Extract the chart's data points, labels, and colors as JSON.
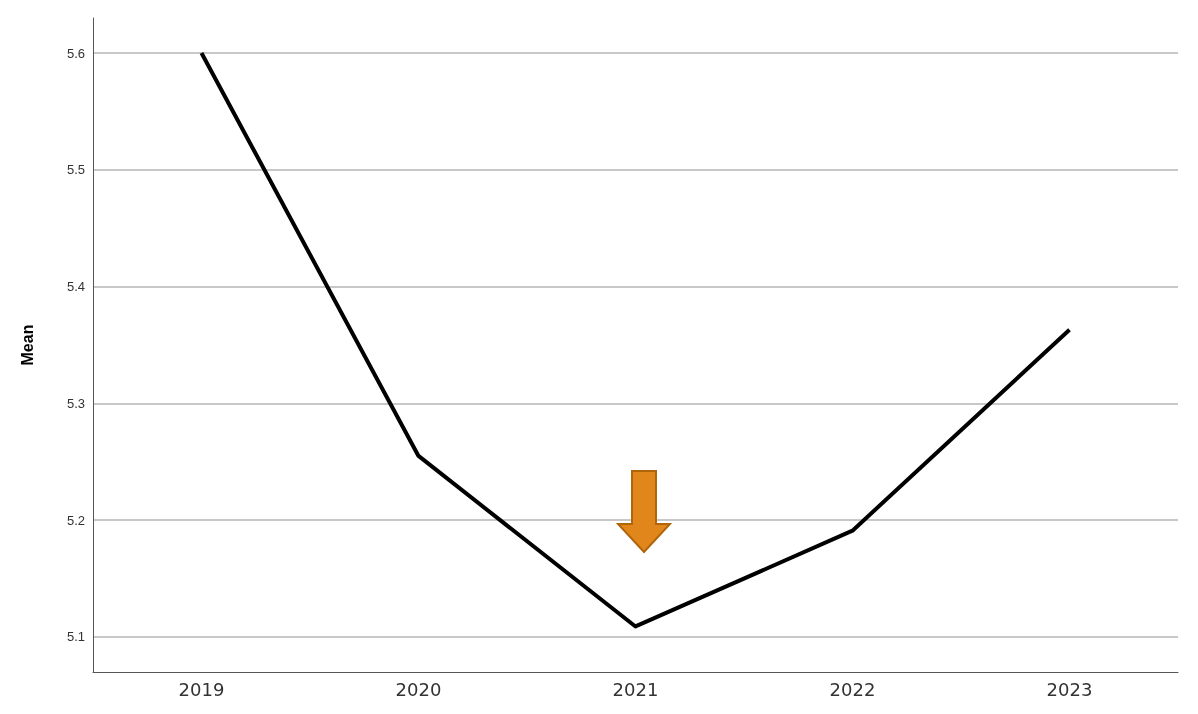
{
  "chart_data": {
    "type": "line",
    "ylabel": "Mean",
    "categories": [
      "2019",
      "2020",
      "2021",
      "2022",
      "2023"
    ],
    "series": [
      {
        "color": "#000000",
        "values": [
          5.6,
          5.255,
          5.109,
          5.191,
          5.363
        ]
      }
    ],
    "ylim": [
      5.07,
      5.63
    ],
    "yticks": [
      5.1,
      5.2,
      5.3,
      5.4,
      5.5,
      5.6
    ],
    "grid": "y",
    "marker": "none",
    "line_style": "solid"
  }
}
